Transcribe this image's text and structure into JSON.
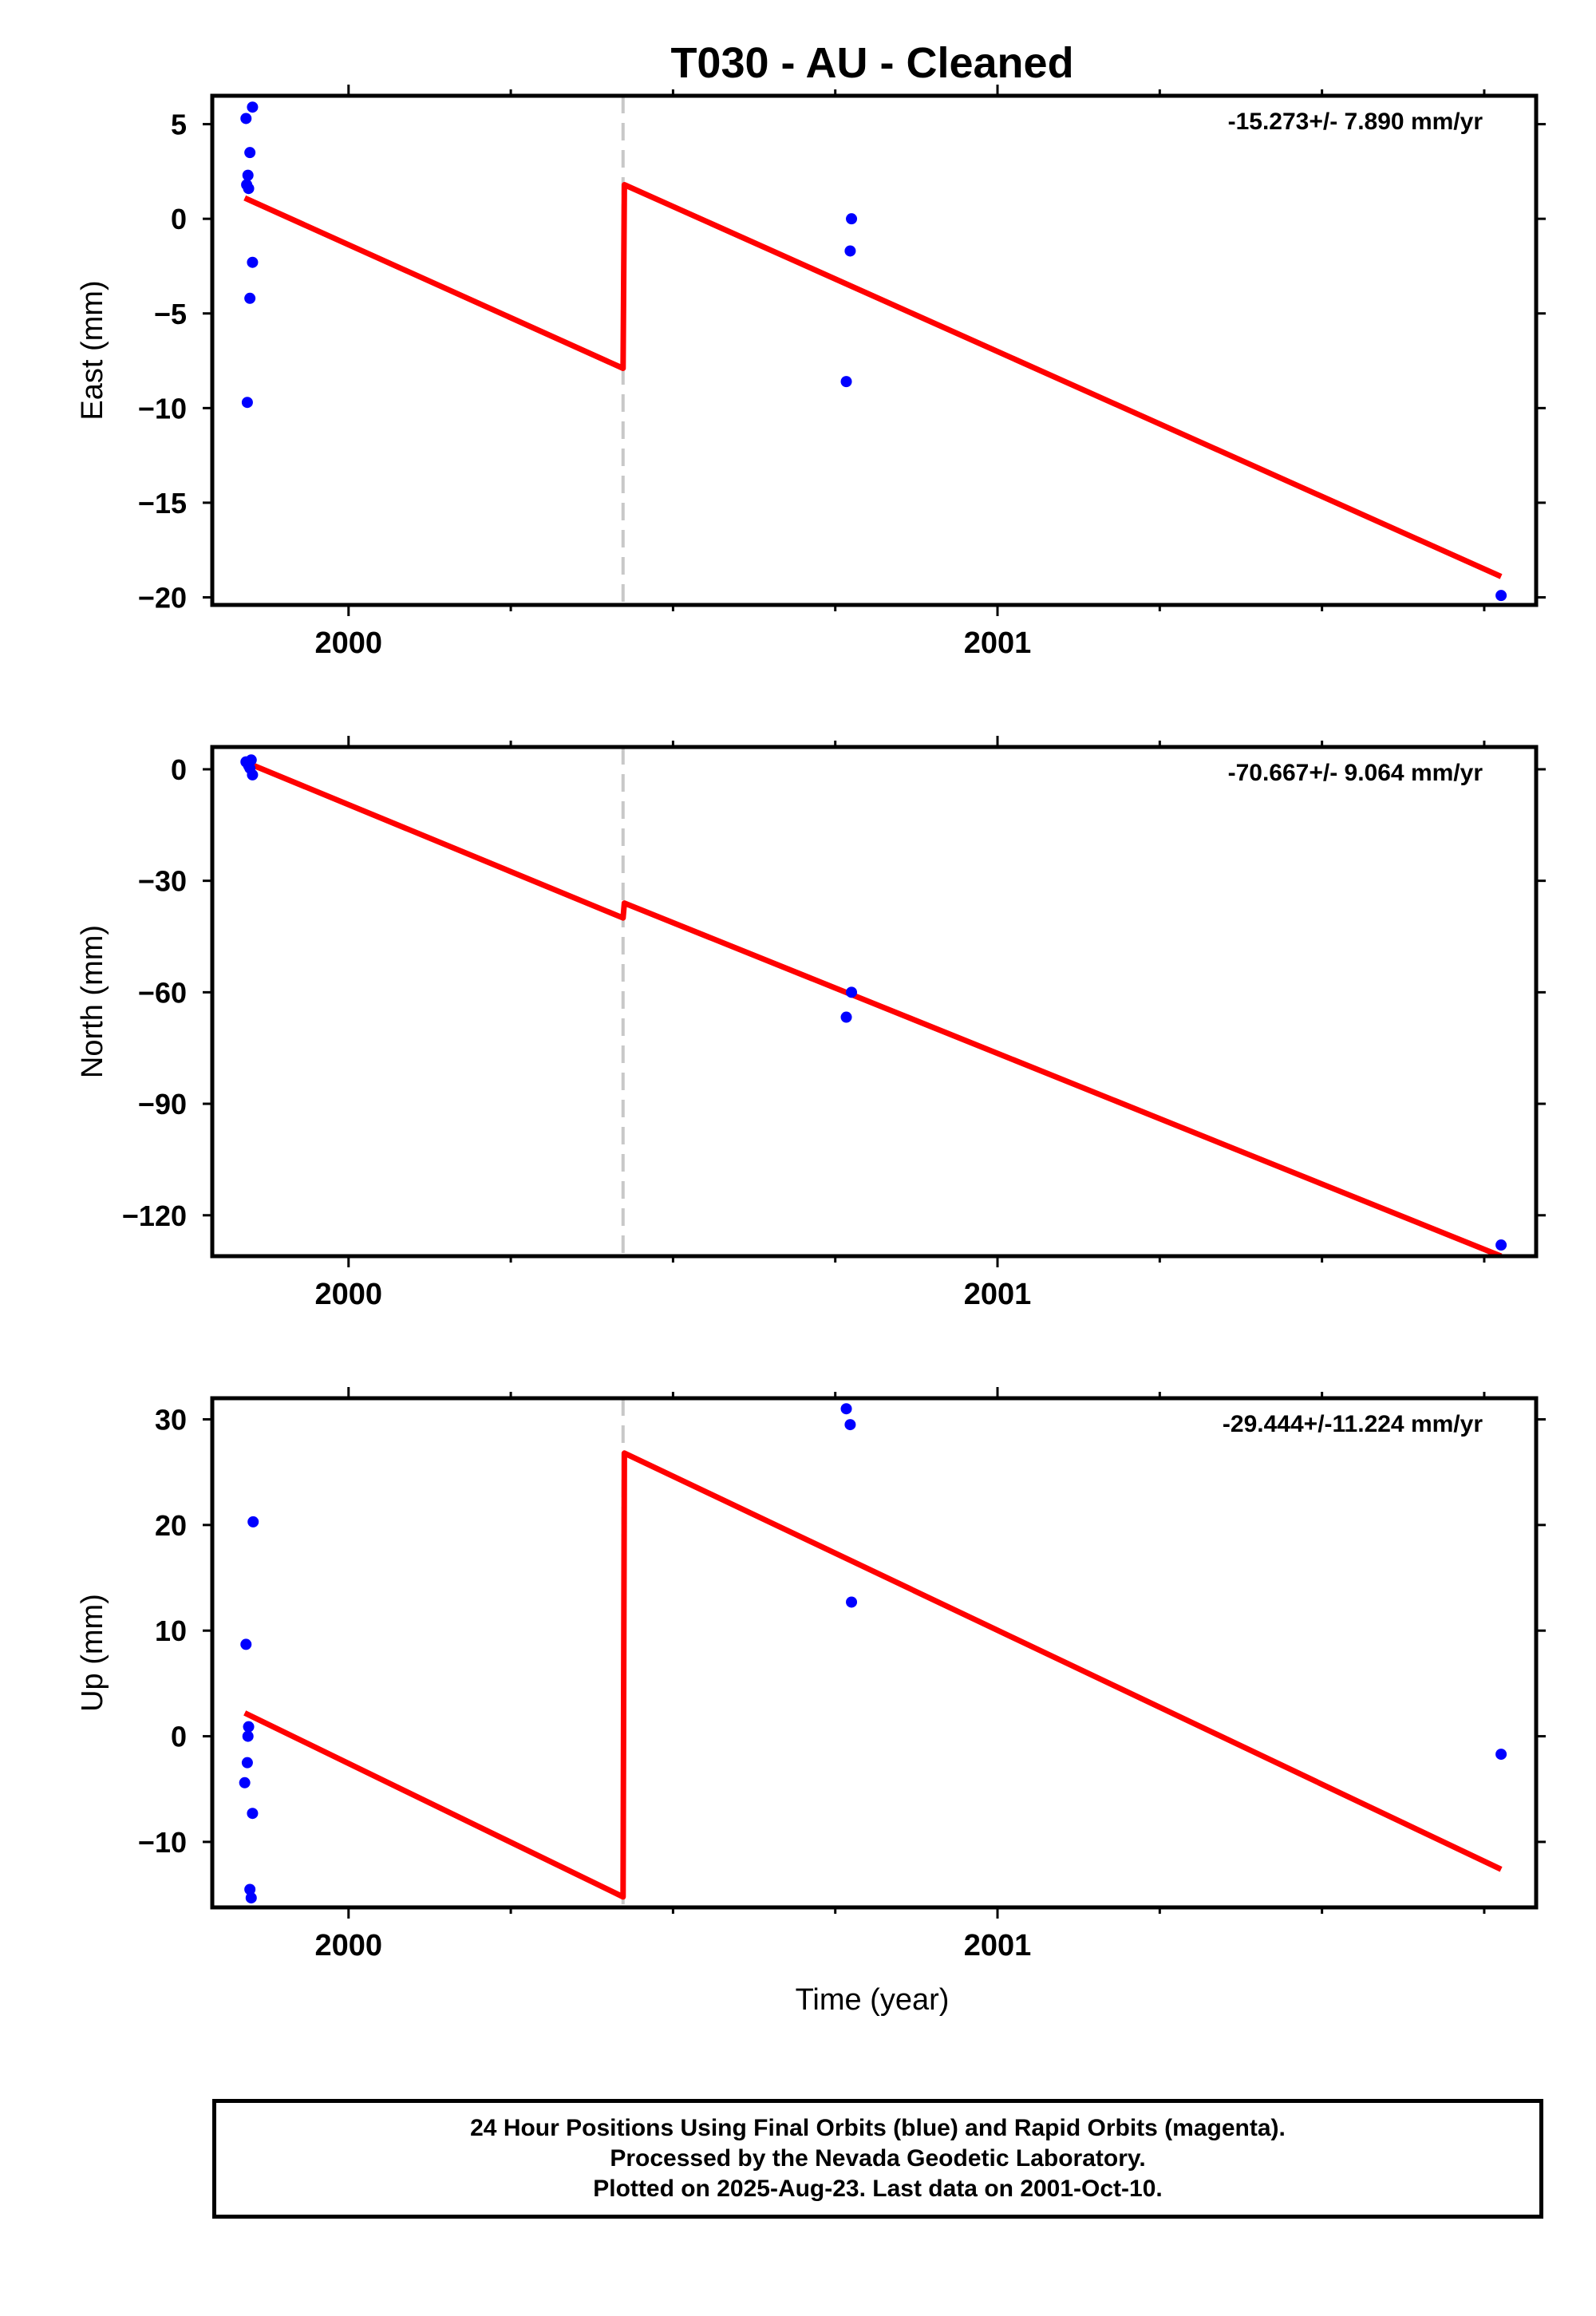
{
  "title": "T030  - AU - Cleaned",
  "xlabel": "Time (year)",
  "colors": {
    "data": "#0000ff",
    "fit": "#ff0000",
    "break": "#c8c8c8",
    "axis": "#000000"
  },
  "chart_data": [
    {
      "type": "scatter",
      "name": "east",
      "ylabel": "East (mm)",
      "rate": "-15.273+/- 7.890 mm/yr",
      "xlim": [
        1999.79,
        2001.83
      ],
      "ylim": [
        -20.4,
        6.5
      ],
      "yticks": [
        5,
        0,
        -5,
        -10,
        -15,
        -20
      ],
      "ytick_labels": [
        "5",
        "0",
        "−5",
        "−10",
        "−15",
        "−20"
      ],
      "xticks": [
        2000,
        2001
      ],
      "xtick_labels": [
        "2000",
        "2001"
      ],
      "break_x": 2000.423,
      "points": [
        [
          1999.842,
          5.3
        ],
        [
          1999.852,
          5.9
        ],
        [
          1999.848,
          3.5
        ],
        [
          1999.845,
          2.3
        ],
        [
          1999.843,
          1.8
        ],
        [
          1999.846,
          1.6
        ],
        [
          1999.852,
          -2.3
        ],
        [
          1999.848,
          -4.2
        ],
        [
          1999.844,
          -9.7
        ],
        [
          2000.775,
          0.0
        ],
        [
          2000.773,
          -1.7
        ],
        [
          2000.767,
          -8.6
        ],
        [
          2001.776,
          -19.9
        ]
      ],
      "fit": [
        [
          [
            1999.84,
            1.1
          ],
          [
            2000.423,
            -7.9
          ]
        ],
        [
          [
            2000.425,
            1.8
          ],
          [
            2001.776,
            -18.9
          ]
        ]
      ]
    },
    {
      "type": "scatter",
      "name": "north",
      "ylabel": "North (mm)",
      "rate": "-70.667+/- 9.064 mm/yr",
      "xlim": [
        1999.79,
        2001.83
      ],
      "ylim": [
        -131,
        6
      ],
      "yticks": [
        0,
        -30,
        -60,
        -90,
        -120
      ],
      "ytick_labels": [
        "0",
        "−30",
        "−60",
        "−90",
        "−120"
      ],
      "xticks": [
        2000,
        2001
      ],
      "xtick_labels": [
        "2000",
        "2001"
      ],
      "break_x": 2000.423,
      "points": [
        [
          1999.842,
          2.0
        ],
        [
          1999.846,
          1.0
        ],
        [
          1999.85,
          2.5
        ],
        [
          1999.848,
          0.3
        ],
        [
          1999.852,
          -1.5
        ],
        [
          2000.775,
          -60.0
        ],
        [
          2000.767,
          -66.7
        ],
        [
          2001.776,
          -128.0
        ]
      ],
      "fit": [
        [
          [
            1999.84,
            2.0
          ],
          [
            2000.423,
            -40.0
          ]
        ],
        [
          [
            2000.425,
            -36.0
          ],
          [
            2001.776,
            -131.0
          ]
        ]
      ]
    },
    {
      "type": "scatter",
      "name": "up",
      "ylabel": "Up (mm)",
      "rate": "-29.444+/-11.224 mm/yr",
      "xlim": [
        1999.79,
        2001.83
      ],
      "ylim": [
        -16.2,
        32.0
      ],
      "yticks": [
        30,
        20,
        10,
        0,
        -10
      ],
      "ytick_labels": [
        "30",
        "20",
        "10",
        "0",
        "−10"
      ],
      "xticks": [
        2000,
        2001
      ],
      "xtick_labels": [
        "2000",
        "2001"
      ],
      "break_x": 2000.423,
      "points": [
        [
          1999.853,
          20.3
        ],
        [
          1999.842,
          8.7
        ],
        [
          1999.846,
          0.9
        ],
        [
          1999.845,
          0.0
        ],
        [
          1999.844,
          -2.5
        ],
        [
          1999.84,
          -4.4
        ],
        [
          1999.852,
          -7.3
        ],
        [
          1999.848,
          -14.5
        ],
        [
          1999.85,
          -15.3
        ],
        [
          2000.767,
          31.0
        ],
        [
          2000.773,
          29.5
        ],
        [
          2000.775,
          12.7
        ],
        [
          2001.776,
          -1.7
        ]
      ],
      "fit": [
        [
          [
            1999.84,
            2.2
          ],
          [
            2000.423,
            -15.2
          ]
        ],
        [
          [
            2000.425,
            26.8
          ],
          [
            2001.776,
            -12.6
          ]
        ]
      ]
    }
  ],
  "footer": {
    "line1": "24 Hour Positions Using Final Orbits (blue) and Rapid Orbits (magenta).",
    "line2": "Processed by the Nevada Geodetic Laboratory.",
    "line3": "Plotted on 2025-Aug-23. Last data on 2001-Oct-10."
  }
}
